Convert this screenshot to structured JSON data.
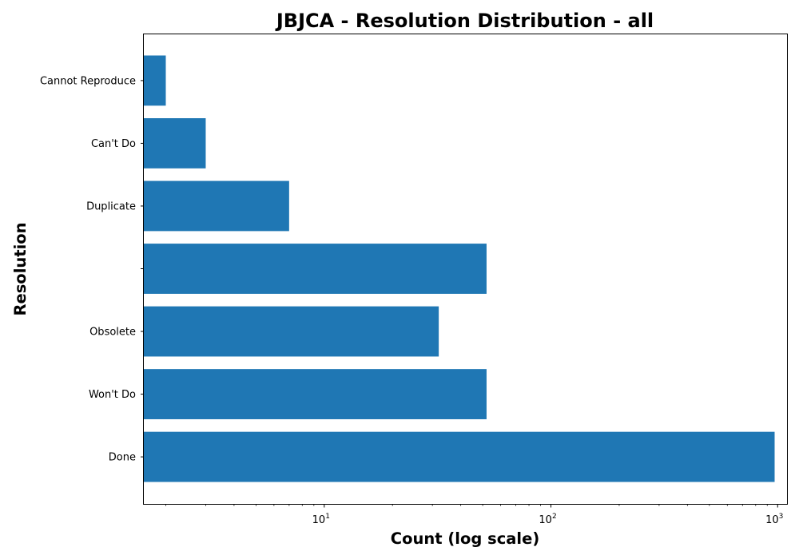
{
  "chart_data": {
    "type": "bar",
    "orientation": "horizontal",
    "title": "JBJCA - Resolution Distribution - all",
    "xlabel": "Count (log scale)",
    "ylabel": "Resolution",
    "x_scale": "log",
    "xlim": [
      1.6,
      1100
    ],
    "x_ticks": [
      {
        "base": "10",
        "exp": "1",
        "value": 10
      },
      {
        "base": "10",
        "exp": "2",
        "value": 100
      },
      {
        "base": "10",
        "exp": "3",
        "value": 1000
      }
    ],
    "grid": false,
    "legend": "none",
    "bar_color": "#1f77b4",
    "categories": [
      "Done",
      "Won't Do",
      "Obsolete",
      "",
      "Duplicate",
      "Can't Do",
      "Cannot Reproduce"
    ],
    "values": [
      970,
      52,
      32,
      52,
      7,
      3,
      2
    ]
  }
}
